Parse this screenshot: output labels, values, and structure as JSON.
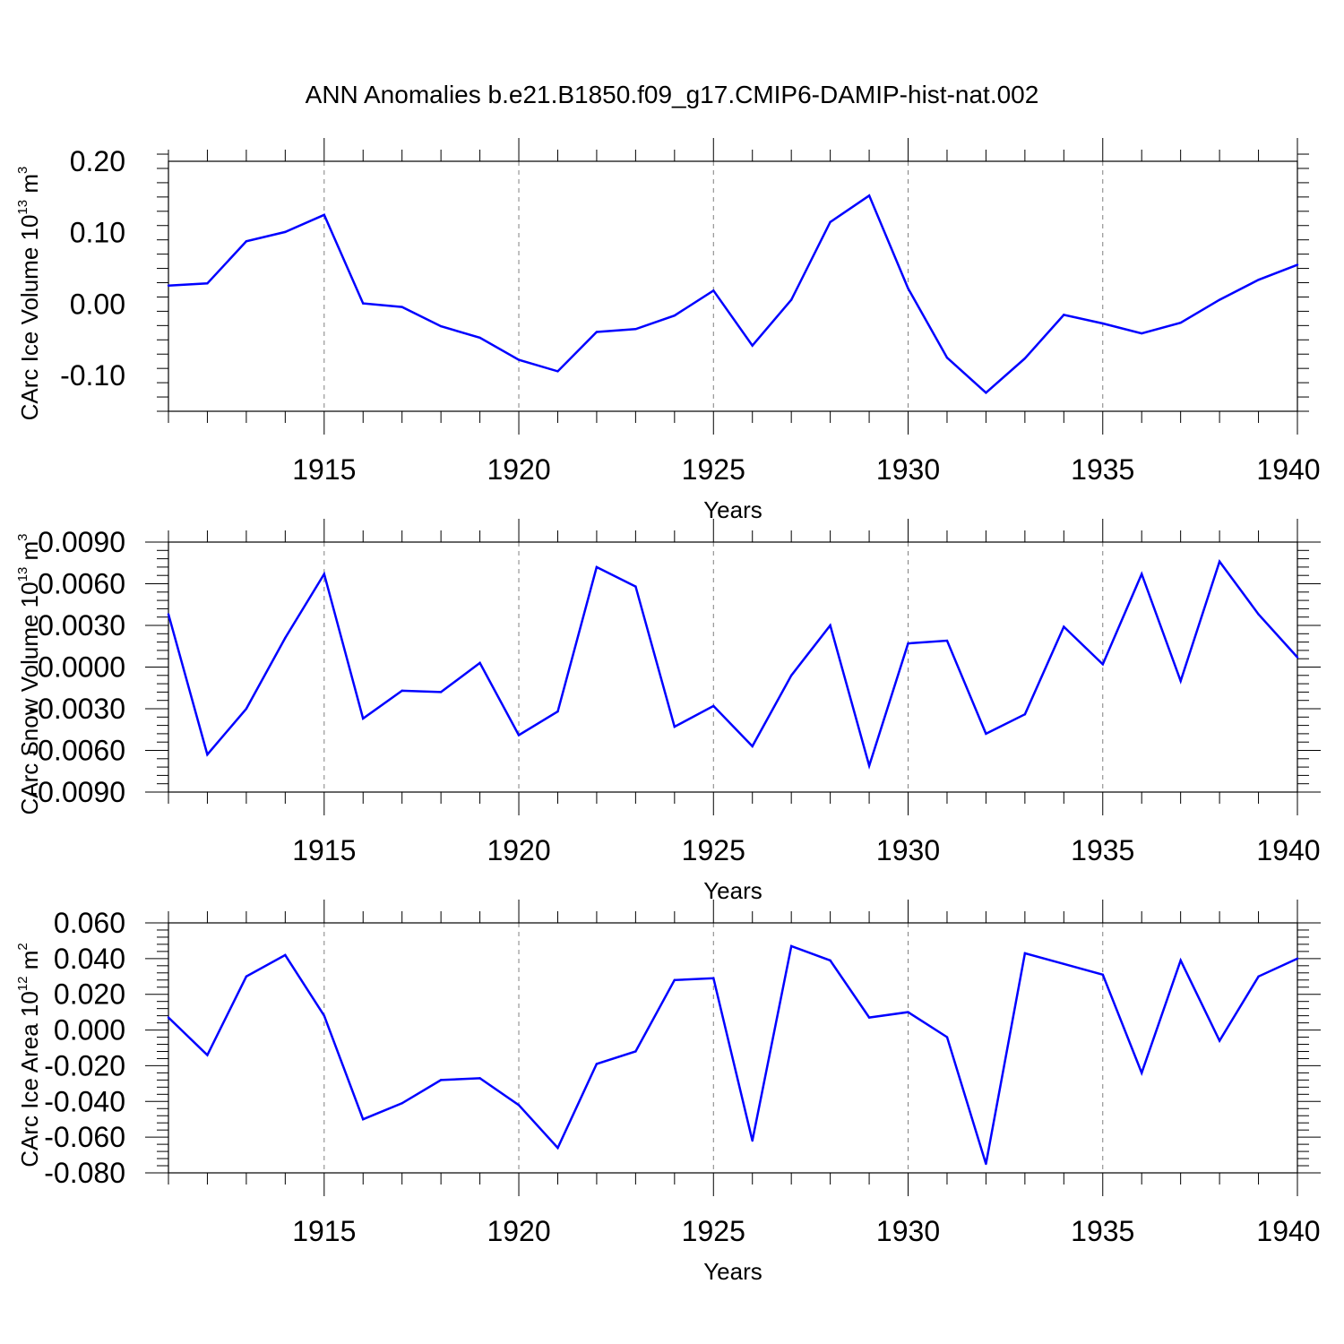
{
  "title": "ANN Anomalies b.e21.B1850.f09_g17.CMIP6-DAMIP-hist-nat.002",
  "colors": {
    "line": "#0000ff",
    "axis": "#000000",
    "grid": "#808080"
  },
  "chart_data": [
    {
      "type": "line",
      "ylabel": {
        "base": "CArc Ice Volume 10",
        "exp": "13",
        "unit": " m",
        "unit_exp": "3"
      },
      "xlabel": "Years",
      "xlim": [
        1911,
        1940
      ],
      "ylim": [
        -0.15,
        0.2
      ],
      "yticks": [
        -0.1,
        0.0,
        0.1,
        0.2
      ],
      "ytick_labels": [
        "-0.10",
        "0.00",
        "0.10",
        "0.20"
      ],
      "xticks": [
        1915,
        1920,
        1925,
        1930,
        1935,
        1940
      ],
      "xtick_labels": [
        "1915",
        "1920",
        "1925",
        "1930",
        "1935",
        "1940"
      ],
      "grid": "vertical dashed at major x ticks",
      "x": [
        1911,
        1912,
        1913,
        1914,
        1915,
        1916,
        1917,
        1918,
        1919,
        1920,
        1921,
        1922,
        1923,
        1924,
        1925,
        1926,
        1927,
        1928,
        1929,
        1930,
        1931,
        1932,
        1933,
        1934,
        1935,
        1936,
        1937,
        1938,
        1939,
        1940
      ],
      "values": [
        0.026,
        0.029,
        0.088,
        0.101,
        0.125,
        0.001,
        -0.004,
        -0.031,
        -0.047,
        -0.078,
        -0.094,
        -0.039,
        -0.035,
        -0.016,
        0.019,
        -0.058,
        0.006,
        0.115,
        0.152,
        0.022,
        -0.075,
        -0.124,
        -0.076,
        -0.015,
        -0.027,
        -0.041,
        -0.026,
        0.006,
        0.034,
        0.055
      ]
    },
    {
      "type": "line",
      "ylabel": {
        "base": "CArc Snow Volume 10",
        "exp": "13",
        "unit": " m",
        "unit_exp": "3"
      },
      "xlabel": "Years",
      "xlim": [
        1911,
        1940
      ],
      "ylim": [
        -0.009,
        0.009
      ],
      "yticks": [
        -0.009,
        -0.006,
        -0.003,
        0.0,
        0.003,
        0.006,
        0.009
      ],
      "ytick_labels": [
        "-0.0090",
        "-0.0060",
        "-0.0030",
        "0.0000",
        "0.0030",
        "0.0060",
        "0.0090"
      ],
      "xticks": [
        1915,
        1920,
        1925,
        1930,
        1935,
        1940
      ],
      "xtick_labels": [
        "1915",
        "1920",
        "1925",
        "1930",
        "1935",
        "1940"
      ],
      "grid": "vertical dashed at major x ticks",
      "x": [
        1911,
        1912,
        1913,
        1914,
        1915,
        1916,
        1917,
        1918,
        1919,
        1920,
        1921,
        1922,
        1923,
        1924,
        1925,
        1926,
        1927,
        1928,
        1929,
        1930,
        1931,
        1932,
        1933,
        1934,
        1935,
        1936,
        1937,
        1938,
        1939,
        1940
      ],
      "values": [
        0.0038,
        -0.0063,
        -0.003,
        0.0021,
        0.0067,
        -0.0037,
        -0.0017,
        -0.0018,
        0.0003,
        -0.0049,
        -0.0032,
        0.0072,
        0.0058,
        -0.0043,
        -0.0028,
        -0.0057,
        -0.0006,
        0.003,
        -0.0071,
        0.0017,
        0.0019,
        -0.0048,
        -0.0034,
        0.0029,
        0.0002,
        0.0067,
        -0.001,
        0.0076,
        0.0038,
        0.0007
      ]
    },
    {
      "type": "line",
      "ylabel": {
        "base": "CArc Ice Area 10",
        "exp": "12",
        "unit": " m",
        "unit_exp": "2"
      },
      "xlabel": "Years",
      "xlim": [
        1911,
        1940
      ],
      "ylim": [
        -0.08,
        0.06
      ],
      "yticks": [
        -0.08,
        -0.06,
        -0.04,
        -0.02,
        0.0,
        0.02,
        0.04,
        0.06
      ],
      "ytick_labels": [
        "-0.080",
        "-0.060",
        "-0.040",
        "-0.020",
        "0.000",
        "0.020",
        "0.040",
        "0.060"
      ],
      "xticks": [
        1915,
        1920,
        1925,
        1930,
        1935,
        1940
      ],
      "xtick_labels": [
        "1915",
        "1920",
        "1925",
        "1930",
        "1935",
        "1940"
      ],
      "grid": "vertical dashed at major x ticks",
      "x": [
        1911,
        1912,
        1913,
        1914,
        1915,
        1916,
        1917,
        1918,
        1919,
        1920,
        1921,
        1922,
        1923,
        1924,
        1925,
        1926,
        1927,
        1928,
        1929,
        1930,
        1931,
        1932,
        1933,
        1934,
        1935,
        1936,
        1937,
        1938,
        1939,
        1940
      ],
      "values": [
        0.007,
        -0.014,
        0.03,
        0.042,
        0.008,
        -0.05,
        -0.041,
        -0.028,
        -0.027,
        -0.042,
        -0.066,
        -0.019,
        -0.012,
        0.028,
        0.029,
        -0.062,
        0.047,
        0.039,
        0.007,
        0.01,
        -0.004,
        -0.075,
        0.043,
        0.037,
        0.031,
        -0.024,
        0.039,
        -0.006,
        0.03,
        0.04
      ]
    }
  ]
}
